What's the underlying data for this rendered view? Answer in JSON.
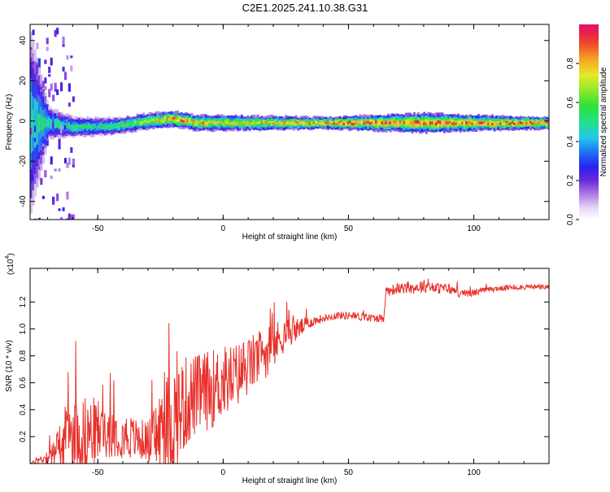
{
  "title": "C2E1.2025.241.10.38.G31",
  "chart_data": [
    {
      "type": "heatmap",
      "title": "C2E1.2025.241.10.38.G31",
      "xlabel": "Height of straight line (km)",
      "ylabel": "Frequency (Hz)",
      "xlim": [
        -77,
        130
      ],
      "ylim": [
        -49,
        48
      ],
      "x_ticks": [
        -50,
        0,
        50,
        100
      ],
      "y_ticks": [
        -40,
        -20,
        0,
        20,
        40
      ],
      "colorbar": {
        "label": "Normalized spectral amplitude",
        "range": [
          0,
          1
        ],
        "ticks": [
          "0.0",
          "0.2",
          "0.4",
          "0.6",
          "0.8"
        ],
        "tick_values": [
          0.0,
          0.2,
          0.4,
          0.6,
          0.8
        ]
      },
      "band": {
        "center_frequency": [
          [
            -70,
            -1
          ],
          [
            -60,
            -3
          ],
          [
            -50,
            -3
          ],
          [
            -40,
            -2
          ],
          [
            -30,
            0
          ],
          [
            -20,
            1
          ],
          [
            -10,
            -1
          ],
          [
            0,
            -1
          ],
          [
            20,
            -1
          ],
          [
            40,
            -1
          ],
          [
            60,
            -1
          ],
          [
            80,
            -1
          ],
          [
            100,
            -1
          ],
          [
            130,
            -1
          ]
        ],
        "peak_amplitude": [
          [
            -70,
            0.55
          ],
          [
            -60,
            0.6
          ],
          [
            -50,
            0.6
          ],
          [
            -40,
            0.7
          ],
          [
            -30,
            0.8
          ],
          [
            -20,
            1.0
          ],
          [
            -10,
            0.9
          ],
          [
            0,
            0.85
          ],
          [
            20,
            0.9
          ],
          [
            40,
            0.95
          ],
          [
            60,
            1.0
          ],
          [
            80,
            1.0
          ],
          [
            100,
            1.0
          ],
          [
            130,
            1.0
          ]
        ],
        "spread_hz": [
          [
            -77,
            45
          ],
          [
            -70,
            8
          ],
          [
            -60,
            5
          ],
          [
            -40,
            4
          ],
          [
            -20,
            4
          ],
          [
            0,
            4
          ],
          [
            40,
            3
          ],
          [
            80,
            5
          ],
          [
            100,
            4
          ],
          [
            130,
            3
          ]
        ]
      }
    },
    {
      "type": "line",
      "xlabel": "Height of straight line (km)",
      "ylabel": "SNR (10 * v/v)",
      "y_scale_label": "(x10",
      "y_scale_exponent": "4",
      "y_scale_suffix": ")",
      "xlim": [
        -77,
        130
      ],
      "ylim": [
        0,
        1.45
      ],
      "x_ticks": [
        -50,
        0,
        50,
        100
      ],
      "y_ticks": [
        0.2,
        0.4,
        0.6,
        0.8,
        1.0,
        1.2
      ],
      "series": [
        {
          "name": "SNR",
          "color": "#e8302a",
          "x": [
            -77,
            -70,
            -65,
            -60,
            -55,
            -50,
            -45,
            -40,
            -35,
            -30,
            -25,
            -20,
            -15,
            -10,
            -5,
            0,
            5,
            10,
            15,
            20,
            25,
            30,
            35,
            40,
            45,
            50,
            55,
            60,
            64,
            65,
            70,
            75,
            80,
            85,
            90,
            95,
            100,
            105,
            110,
            115,
            120,
            125,
            130
          ],
          "values": [
            0.0,
            0.05,
            0.12,
            0.2,
            0.22,
            0.24,
            0.25,
            0.22,
            0.18,
            0.17,
            0.22,
            0.32,
            0.45,
            0.52,
            0.55,
            0.6,
            0.65,
            0.72,
            0.8,
            0.87,
            0.97,
            1.0,
            1.05,
            1.08,
            1.1,
            1.1,
            1.09,
            1.08,
            1.08,
            1.28,
            1.3,
            1.3,
            1.32,
            1.3,
            1.3,
            1.26,
            1.27,
            1.29,
            1.3,
            1.31,
            1.31,
            1.31,
            1.31
          ],
          "noise_amplitude": [
            0.0,
            0.06,
            0.2,
            0.3,
            0.28,
            0.25,
            0.2,
            0.18,
            0.16,
            0.15,
            0.35,
            0.45,
            0.35,
            0.3,
            0.3,
            0.28,
            0.25,
            0.22,
            0.2,
            0.18,
            0.12,
            0.08,
            0.04,
            0.03,
            0.03,
            0.03,
            0.03,
            0.03,
            0.03,
            0.04,
            0.04,
            0.04,
            0.05,
            0.04,
            0.04,
            0.03,
            0.03,
            0.02,
            0.02,
            0.02,
            0.02,
            0.02,
            0.02
          ]
        }
      ]
    }
  ]
}
